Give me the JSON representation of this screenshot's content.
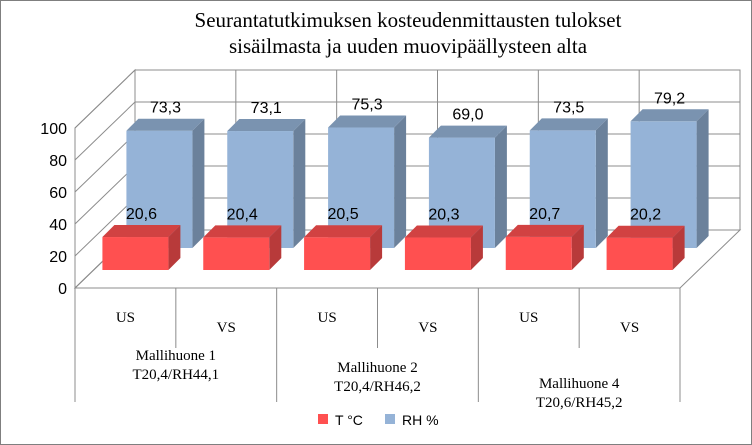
{
  "chart_data": {
    "type": "bar",
    "title_lines": [
      "Seurantatutkimuksen kosteudenmittausten tulokset",
      "sisäilmasta ja uuden muovipäällysteen alta"
    ],
    "categories": [
      "US",
      "VS",
      "US",
      "VS",
      "US",
      "VS"
    ],
    "groups": [
      {
        "label_lines": [
          "Mallihuone 1",
          "T20,4/RH44,1"
        ]
      },
      {
        "label_lines": [
          "Mallihuone 2",
          "T20,4/RH46,2"
        ]
      },
      {
        "label_lines": [
          "Mallihuone 4",
          "T20,6/RH45,2"
        ]
      }
    ],
    "series": [
      {
        "name": "T °C",
        "color": "#ff5050",
        "values": [
          20.6,
          20.4,
          20.5,
          20.3,
          20.7,
          20.2
        ],
        "labels": [
          "20,6",
          "20,4",
          "20,5",
          "20,3",
          "20,7",
          "20,2"
        ]
      },
      {
        "name": "RH %",
        "color": "#95b3d7",
        "values": [
          73.3,
          73.1,
          75.3,
          69.0,
          73.5,
          79.2
        ],
        "labels": [
          "73,3",
          "73,1",
          "75,3",
          "69,0",
          "73,5",
          "79,2"
        ]
      }
    ],
    "yticks": [
      0,
      20,
      40,
      60,
      80,
      100
    ],
    "ylim": [
      0,
      100
    ],
    "grid": true,
    "legend_position": "bottom"
  }
}
